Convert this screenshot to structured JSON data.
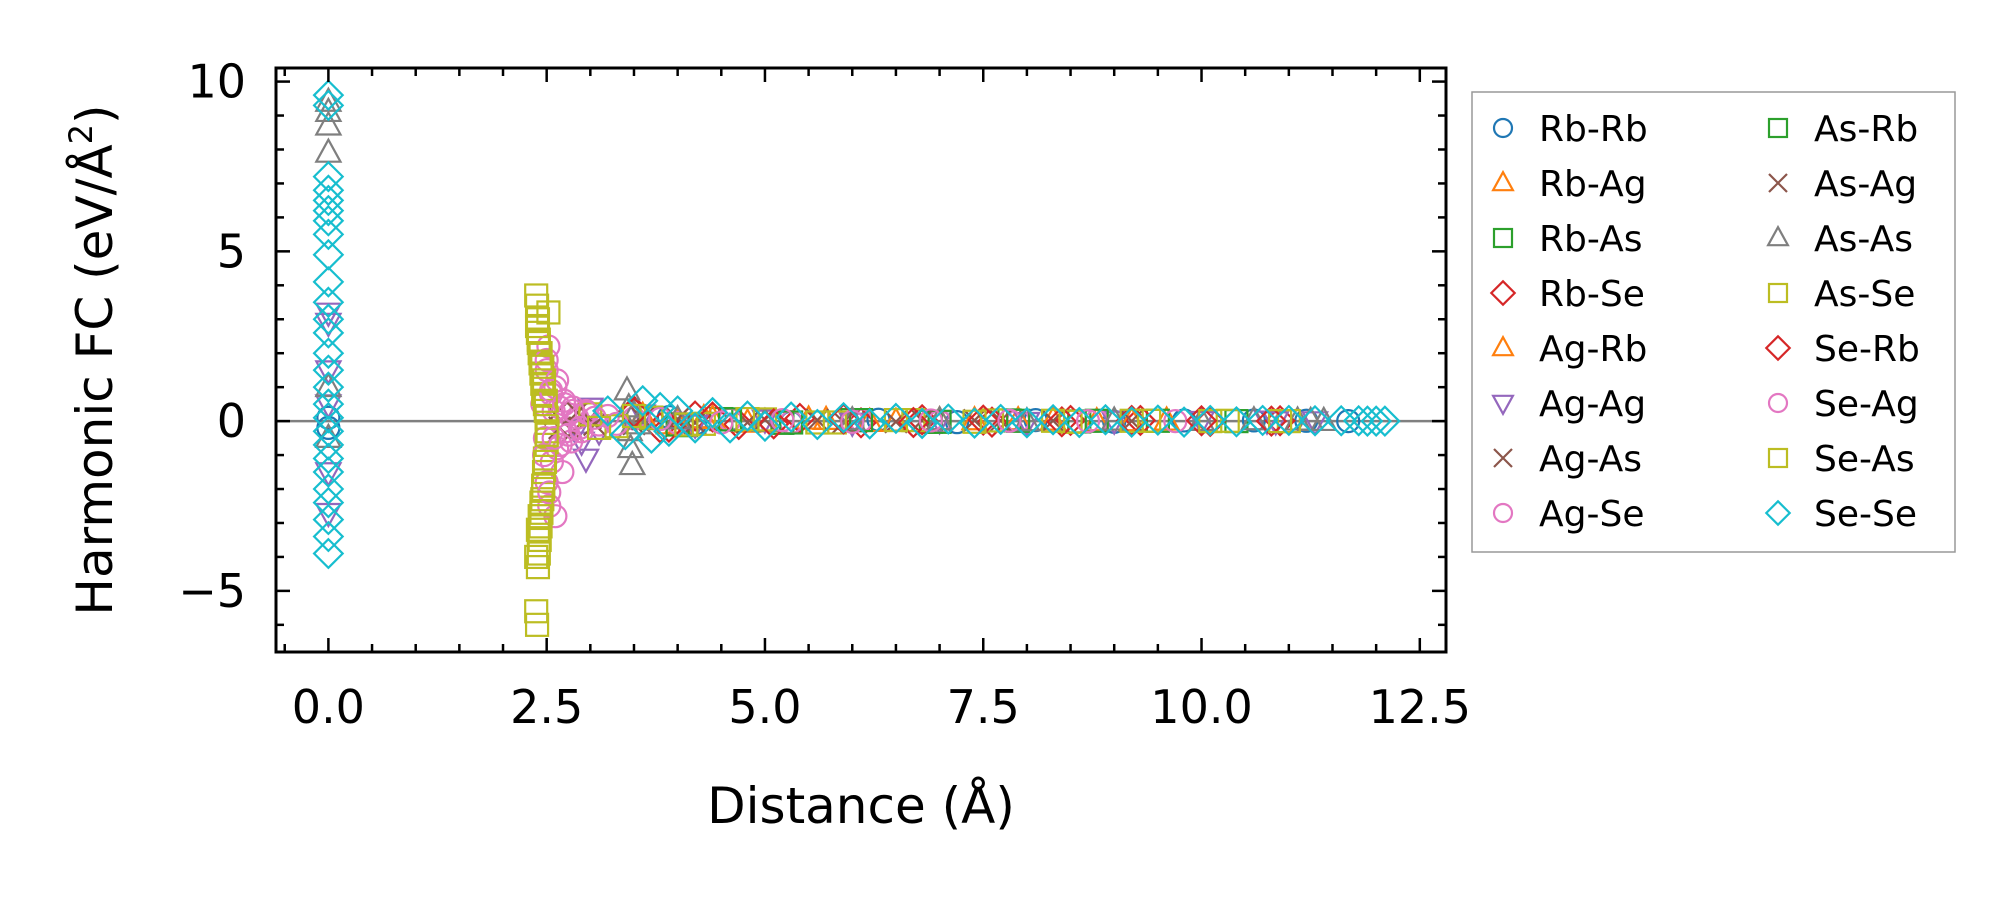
{
  "chart_data": {
    "type": "scatter",
    "title": "",
    "xlabel": "Distance (Å)",
    "ylabel_main": "Harmonic FC (eV/Å",
    "ylabel_sup": "2",
    "ylabel_end": ")",
    "xlim": [
      -0.6,
      12.8
    ],
    "ylim": [
      -6.8,
      10.4
    ],
    "x_ticks": [
      0.0,
      2.5,
      5.0,
      7.5,
      10.0,
      12.5
    ],
    "x_tick_labels": [
      "0.0",
      "2.5",
      "5.0",
      "7.5",
      "10.0",
      "12.5"
    ],
    "y_ticks": [
      -5,
      0,
      5,
      10
    ],
    "y_tick_labels": [
      "−5",
      "0",
      "5",
      "10"
    ],
    "x_minor_step": 0.5,
    "y_minor_step": 1,
    "zero_line": true,
    "grid": false,
    "legend_position": "outside-right",
    "legend_columns": 2,
    "series": [
      {
        "name": "Rb-Rb",
        "color": "#1f77b4",
        "marker": "circle",
        "x": [
          0.0,
          0.0,
          3.9,
          4.2,
          4.6,
          5.3,
          6.3,
          7.2,
          8.1,
          9.0,
          9.8,
          10.6,
          11.2,
          11.68
        ],
        "y": [
          0.1,
          -0.2,
          0.12,
          -0.08,
          0.05,
          -0.05,
          0.04,
          -0.03,
          0.03,
          -0.02,
          0.02,
          0.02,
          0.01,
          0.0
        ]
      },
      {
        "name": "Rb-Ag",
        "color": "#ff7f0e",
        "marker": "triangle-up",
        "x": [
          3.6,
          3.9,
          4.3,
          4.8,
          5.5,
          6.2,
          7.0,
          7.9,
          8.8,
          9.6
        ],
        "y": [
          0.15,
          -0.1,
          0.08,
          -0.05,
          0.04,
          -0.03,
          0.02,
          0.02,
          -0.01,
          0.01
        ]
      },
      {
        "name": "Rb-As",
        "color": "#2ca02c",
        "marker": "square",
        "x": [
          3.7,
          4.1,
          4.5,
          5.2,
          6.0,
          6.9,
          7.8,
          8.6,
          9.5,
          10.4
        ],
        "y": [
          0.1,
          -0.12,
          0.06,
          -0.05,
          0.03,
          -0.02,
          0.02,
          -0.01,
          0.01,
          0.0
        ]
      },
      {
        "name": "Rb-Se",
        "color": "#d62728",
        "marker": "diamond",
        "x": [
          3.5,
          3.8,
          4.2,
          4.7,
          5.4,
          6.1,
          6.8,
          7.6,
          8.5,
          9.3,
          10.1,
          10.9
        ],
        "y": [
          0.3,
          -0.2,
          0.15,
          -0.1,
          0.08,
          -0.05,
          0.04,
          -0.03,
          0.02,
          0.02,
          -0.01,
          0.01
        ]
      },
      {
        "name": "Ag-Rb",
        "color": "#ff7f0e",
        "marker": "triangle-up",
        "x": [
          3.6,
          4.0,
          4.4,
          5.0,
          5.7,
          6.5,
          7.4,
          8.3,
          9.2
        ],
        "y": [
          0.12,
          -0.08,
          0.06,
          -0.04,
          0.03,
          -0.02,
          0.02,
          0.01,
          -0.01
        ]
      },
      {
        "name": "Ag-Ag",
        "color": "#9467bd",
        "marker": "triangle-down",
        "x": [
          0.0,
          0.0,
          0.0,
          0.0,
          0.0,
          0.0,
          2.85,
          2.9,
          2.95,
          3.0,
          3.1,
          3.6,
          4.2,
          5.0,
          6.0,
          7.0,
          8.0,
          9.0,
          10.0,
          10.75,
          10.85,
          11.3
        ],
        "y": [
          3.2,
          2.9,
          1.5,
          0.5,
          -1.5,
          -2.7,
          -0.2,
          -0.6,
          -1.1,
          0.4,
          -0.3,
          0.2,
          -0.1,
          0.05,
          -0.04,
          0.03,
          -0.02,
          0.02,
          0.01,
          0.02,
          0.0,
          0.0
        ]
      },
      {
        "name": "Ag-As",
        "color": "#8c564b",
        "marker": "x",
        "x": [
          2.6,
          2.8,
          3.0,
          3.5,
          4.0,
          4.8,
          5.6,
          6.5,
          7.4,
          8.3,
          9.2
        ],
        "y": [
          0.2,
          -0.3,
          0.1,
          -0.08,
          0.06,
          -0.04,
          0.03,
          -0.02,
          0.02,
          0.01,
          0.0
        ]
      },
      {
        "name": "Ag-Se",
        "color": "#e377c2",
        "marker": "circle",
        "x": [
          2.45,
          2.48,
          2.5,
          2.5,
          2.52,
          2.53,
          2.55,
          2.56,
          2.58,
          2.6,
          2.6,
          2.62,
          2.65,
          2.68,
          2.7,
          2.72,
          2.75,
          2.78,
          2.8,
          2.85,
          2.9,
          2.95,
          3.0,
          3.1,
          3.2,
          3.5,
          4.0,
          4.6,
          5.3,
          6.1,
          7.0,
          7.9,
          8.8,
          9.7
        ],
        "y": [
          0.5,
          -0.5,
          1.5,
          -1.8,
          2.2,
          -2.5,
          0.8,
          -1.2,
          0.3,
          -2.8,
          1.0,
          -0.8,
          0.4,
          -1.5,
          0.6,
          -0.3,
          0.2,
          -0.6,
          0.4,
          0.1,
          -0.3,
          0.3,
          0.2,
          -0.1,
          0.15,
          0.08,
          -0.05,
          0.04,
          -0.03,
          0.02,
          -0.02,
          0.01,
          0.01,
          0.0
        ]
      },
      {
        "name": "As-Rb",
        "color": "#2ca02c",
        "marker": "square",
        "x": [
          3.7,
          4.0,
          4.6,
          5.3,
          6.1,
          7.0,
          7.9,
          8.8
        ],
        "y": [
          0.09,
          -0.1,
          0.05,
          -0.04,
          0.03,
          -0.02,
          0.01,
          0.01
        ]
      },
      {
        "name": "As-Ag",
        "color": "#8c564b",
        "marker": "x",
        "x": [
          2.65,
          2.85,
          3.05,
          3.6,
          4.2,
          5.0,
          5.9,
          6.8,
          7.7
        ],
        "y": [
          -0.2,
          0.25,
          -0.1,
          0.07,
          -0.05,
          0.04,
          -0.03,
          0.02,
          0.01
        ]
      },
      {
        "name": "As-As",
        "color": "#7f7f7f",
        "marker": "triangle-up",
        "x": [
          0.0,
          0.0,
          0.0,
          0.0,
          0.0,
          0.0,
          3.42,
          3.44,
          3.45,
          3.46,
          3.48,
          3.5,
          3.55,
          4.0,
          5.0,
          6.0,
          7.0,
          8.0,
          9.0,
          10.0,
          10.6,
          11.1,
          11.25,
          11.4
        ],
        "y": [
          9.4,
          9.1,
          8.7,
          7.9,
          1.0,
          -0.5,
          0.9,
          0.4,
          -0.3,
          -0.8,
          -1.3,
          0.2,
          -0.1,
          0.05,
          -0.03,
          0.02,
          0.02,
          -0.01,
          0.01,
          0.0,
          0.02,
          0.01,
          0.0,
          0.0
        ]
      },
      {
        "name": "As-Se",
        "color": "#bcbd22",
        "marker": "square",
        "x": [
          2.38,
          2.38,
          2.39,
          2.39,
          2.4,
          2.4,
          2.4,
          2.41,
          2.41,
          2.42,
          2.42,
          2.43,
          2.43,
          2.44,
          2.44,
          2.45,
          2.45,
          2.46,
          2.46,
          2.47,
          2.48,
          2.48,
          2.49,
          2.5,
          2.5,
          2.51,
          2.52,
          3.0,
          3.3,
          3.7,
          4.3,
          5.0,
          5.8,
          6.7,
          7.6,
          8.5,
          9.4,
          10.3,
          11.0
        ],
        "y": [
          3.7,
          -5.6,
          3.4,
          -6.0,
          3.0,
          -4.3,
          2.6,
          -3.9,
          2.3,
          -3.5,
          2.0,
          -3.1,
          1.7,
          -2.7,
          1.4,
          -2.3,
          1.1,
          -1.9,
          0.8,
          -1.5,
          0.5,
          -1.1,
          0.3,
          -0.7,
          0.1,
          -0.3,
          3.2,
          0.2,
          -0.15,
          0.1,
          -0.08,
          0.05,
          -0.04,
          0.03,
          0.02,
          -0.02,
          0.01,
          0.01,
          0.0
        ]
      },
      {
        "name": "Se-Rb",
        "color": "#d62728",
        "marker": "diamond",
        "x": [
          3.5,
          3.9,
          4.4,
          5.1,
          5.9,
          6.7,
          7.5,
          8.4,
          9.2,
          10.0,
          10.8
        ],
        "y": [
          0.25,
          -0.18,
          0.12,
          -0.08,
          0.06,
          -0.04,
          0.03,
          -0.02,
          0.02,
          0.01,
          0.0
        ]
      },
      {
        "name": "Se-Ag",
        "color": "#e377c2",
        "marker": "circle",
        "x": [
          2.47,
          2.5,
          2.53,
          2.55,
          2.58,
          2.62,
          2.66,
          2.7,
          2.75,
          2.8,
          2.88,
          2.96,
          3.05,
          3.3,
          3.8,
          4.5,
          5.2,
          6.0,
          6.9,
          7.8,
          8.7
        ],
        "y": [
          -1.0,
          1.8,
          -2.1,
          0.9,
          -0.5,
          1.2,
          -0.7,
          0.5,
          -0.4,
          0.3,
          -0.2,
          0.25,
          0.1,
          -0.08,
          0.06,
          -0.04,
          0.03,
          -0.02,
          0.02,
          0.01,
          0.0
        ]
      },
      {
        "name": "Se-As",
        "color": "#bcbd22",
        "marker": "square",
        "x": [
          2.38,
          2.39,
          2.4,
          2.41,
          2.42,
          2.43,
          2.44,
          2.45,
          2.46,
          2.47,
          2.48,
          2.49,
          2.5,
          3.1,
          3.5,
          4.1,
          4.8,
          5.6,
          6.5,
          7.4,
          8.3,
          9.2,
          10.1,
          10.9
        ],
        "y": [
          -4.0,
          2.8,
          -3.2,
          2.4,
          -2.8,
          2.0,
          -2.4,
          1.6,
          -2.0,
          1.2,
          -1.2,
          0.6,
          -0.4,
          -0.2,
          0.15,
          -0.1,
          0.06,
          -0.04,
          0.03,
          -0.02,
          0.01,
          0.01,
          0.0,
          0.0
        ]
      },
      {
        "name": "Se-Se",
        "color": "#17becf",
        "marker": "diamond",
        "x": [
          0.0,
          0.0,
          0.0,
          0.0,
          0.0,
          0.0,
          0.0,
          0.0,
          0.0,
          0.0,
          0.0,
          0.0,
          0.0,
          0.0,
          0.0,
          0.0,
          0.0,
          0.0,
          0.0,
          0.0,
          0.0,
          0.0,
          0.0,
          0.0,
          0.0,
          0.0,
          0.0,
          3.2,
          3.4,
          3.6,
          3.7,
          3.8,
          3.9,
          4.0,
          4.2,
          4.4,
          4.6,
          4.8,
          5.0,
          5.3,
          5.6,
          5.9,
          6.2,
          6.5,
          6.8,
          7.1,
          7.4,
          7.7,
          8.0,
          8.3,
          8.6,
          8.9,
          9.2,
          9.5,
          9.8,
          10.1,
          10.4,
          10.7,
          11.0,
          11.3,
          11.6,
          11.8,
          11.9,
          12.0,
          12.1
        ],
        "y": [
          9.6,
          9.3,
          7.2,
          6.8,
          6.5,
          6.2,
          5.9,
          5.5,
          4.9,
          4.1,
          3.5,
          3.0,
          2.6,
          2.0,
          1.5,
          1.0,
          0.5,
          0.1,
          -0.3,
          -0.7,
          -1.1,
          -1.5,
          -2.0,
          -2.4,
          -2.9,
          -3.4,
          -3.9,
          0.3,
          -0.4,
          0.6,
          -0.5,
          0.4,
          -0.3,
          0.3,
          -0.2,
          0.25,
          -0.2,
          0.15,
          -0.15,
          0.12,
          -0.1,
          0.1,
          -0.08,
          0.08,
          -0.07,
          0.06,
          -0.06,
          0.05,
          -0.05,
          0.04,
          -0.04,
          0.04,
          -0.03,
          0.03,
          -0.03,
          0.02,
          -0.02,
          0.02,
          0.02,
          0.01,
          0.01,
          0.01,
          0.0,
          0.0,
          0.0
        ]
      }
    ]
  }
}
